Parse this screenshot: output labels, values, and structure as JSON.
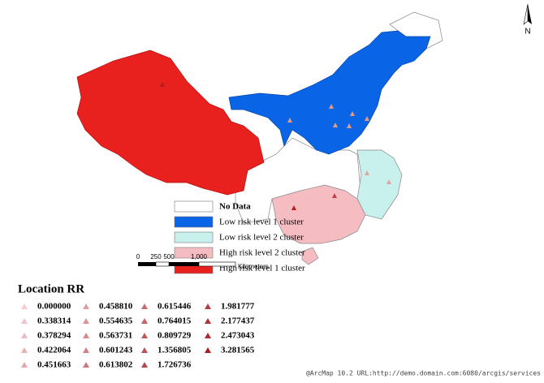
{
  "north_arrow": "N",
  "legend": {
    "items": [
      {
        "label": "No Data",
        "color": "#ffffff"
      },
      {
        "label": "Low risk level 1 cluster",
        "color": "#0a64e6"
      },
      {
        "label": "Low risk level 2 cluster",
        "color": "#c8f0ec"
      },
      {
        "label": "High risk level 2 cluster",
        "color": "#f5bcc2"
      },
      {
        "label": "High risk level 1 cluster",
        "color": "#e8201e"
      }
    ]
  },
  "scale_bar": {
    "ticks": [
      "0",
      "250",
      "500",
      "1,000"
    ],
    "unit": "Kilometers"
  },
  "rr_legend": {
    "title": "Location RR",
    "values": [
      "0.000000",
      "0.338314",
      "0.378294",
      "0.422064",
      "0.451663",
      "0.458810",
      "0.554635",
      "0.563731",
      "0.601243",
      "0.613802",
      "0.615446",
      "0.764015",
      "0.809729",
      "1.356805",
      "1.726736",
      "1.981777",
      "2.177437",
      "2.473043",
      "3.281565"
    ]
  },
  "footer": "@ArcMap 10.2 URL:http://demo.domain.com:6080/arcgis/services"
}
